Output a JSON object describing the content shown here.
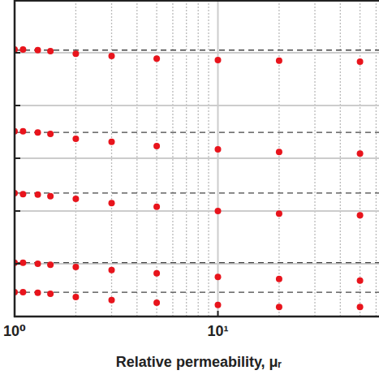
{
  "chart_data": {
    "type": "scatter",
    "x_label": "Relative permeability, μᵣ",
    "log": "x",
    "grid": true,
    "tick_labels": "x",
    "marker": "circle",
    "xlim": [
      1,
      62
    ],
    "xticks": [
      {
        "value": 1,
        "label": "10⁰"
      },
      {
        "value": 10,
        "label": "10¹"
      }
    ],
    "ylim": [
      0,
      6
    ],
    "yticks": [
      0,
      1,
      2,
      3,
      4,
      5,
      6
    ],
    "x": [
      1,
      1.1,
      1.3,
      1.5,
      2,
      3,
      5,
      10,
      20,
      50
    ],
    "series": [
      {
        "color": "#e8141c",
        "reference": 5.05,
        "values": [
          5.06,
          5.06,
          5.05,
          5.03,
          4.98,
          4.94,
          4.89,
          4.86,
          4.85,
          4.83
        ]
      },
      {
        "color": "#e8141c",
        "reference": 3.49,
        "values": [
          3.51,
          3.51,
          3.49,
          3.46,
          3.37,
          3.31,
          3.23,
          3.17,
          3.12,
          3.09
        ]
      },
      {
        "color": "#e8141c",
        "reference": 2.34,
        "values": [
          2.34,
          2.32,
          2.31,
          2.28,
          2.23,
          2.15,
          2.08,
          2.0,
          1.95,
          1.92
        ]
      },
      {
        "color": "#e8141c",
        "reference": 1.02,
        "values": [
          1.02,
          1.02,
          1.0,
          0.98,
          0.94,
          0.88,
          0.82,
          0.75,
          0.71,
          0.68
        ]
      },
      {
        "color": "#e8141c",
        "reference": 0.46,
        "values": [
          0.46,
          0.46,
          0.45,
          0.43,
          0.37,
          0.31,
          0.26,
          0.22,
          0.18,
          0.18
        ]
      }
    ]
  }
}
